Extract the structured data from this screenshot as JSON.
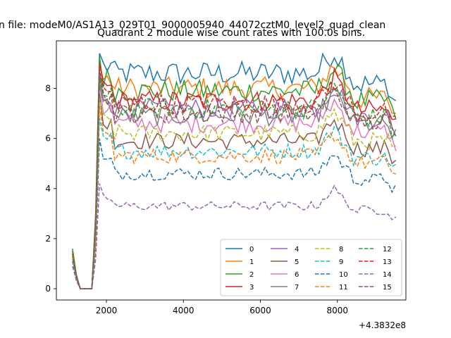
{
  "chart_data": {
    "type": "line",
    "title": "Quadrant 2 module wise count rates with 100.0s bins.",
    "suptitle": "n file: modeM0/AS1A13_029T01_9000005940_44072cztM0_level2_quad_clean",
    "x_offset_label": "+4.3832e8",
    "xlabel": "",
    "ylabel": "",
    "xlim": [
      700,
      9780
    ],
    "ylim": [
      -0.45,
      9.9
    ],
    "xticks": [
      2000,
      4000,
      6000,
      8000
    ],
    "xtick_labels": [
      "2000",
      "4000",
      "6000",
      "8000"
    ],
    "yticks": [
      0,
      2,
      4,
      6,
      8
    ],
    "ytick_labels": [
      "0",
      "2",
      "4",
      "6",
      "8"
    ],
    "grid": false,
    "legend": {
      "placement": "lower-right",
      "columns": 4
    },
    "series": [
      {
        "name": "0",
        "color": "#1f77b4",
        "dash": "solid",
        "start": 1.5,
        "level": 8.6,
        "peak": 9.4,
        "hump": 0.9
      },
      {
        "name": "1",
        "color": "#ff7f0e",
        "dash": "solid",
        "start": 1.4,
        "level": 8.0,
        "peak": 9.0,
        "hump": 0.9
      },
      {
        "name": "2",
        "color": "#2ca02c",
        "dash": "solid",
        "start": 1.6,
        "level": 7.9,
        "peak": 9.3,
        "hump": 0.9
      },
      {
        "name": "3",
        "color": "#d62728",
        "dash": "solid",
        "start": 1.5,
        "level": 7.5,
        "peak": 9.0,
        "hump": 0.9
      },
      {
        "name": "4",
        "color": "#9467bd",
        "dash": "solid",
        "start": 1.4,
        "level": 7.2,
        "peak": 8.7,
        "hump": 0.9
      },
      {
        "name": "5",
        "color": "#8c564b",
        "dash": "solid",
        "start": 1.3,
        "level": 5.9,
        "peak": 7.8,
        "hump": 0.9
      },
      {
        "name": "6",
        "color": "#e377c2",
        "dash": "solid",
        "start": 1.4,
        "level": 6.6,
        "peak": 8.3,
        "hump": 0.9
      },
      {
        "name": "7",
        "color": "#7f7f7f",
        "dash": "solid",
        "start": 1.4,
        "level": 6.9,
        "peak": 8.2,
        "hump": 0.9
      },
      {
        "name": "8",
        "color": "#bcbd22",
        "dash": "dashed",
        "start": 1.3,
        "level": 6.2,
        "peak": 7.6,
        "hump": 0.9
      },
      {
        "name": "9",
        "color": "#17becf",
        "dash": "dashed",
        "start": 1.2,
        "level": 5.5,
        "peak": 6.8,
        "hump": 0.9
      },
      {
        "name": "10",
        "color": "#1f77b4",
        "dash": "dashed",
        "start": 1.1,
        "level": 4.6,
        "peak": 6.0,
        "hump": 0.8
      },
      {
        "name": "11",
        "color": "#ff7f0e",
        "dash": "dashed",
        "start": 1.3,
        "level": 5.3,
        "peak": 7.3,
        "hump": 0.9
      },
      {
        "name": "12",
        "color": "#2ca02c",
        "dash": "dashed",
        "start": 1.5,
        "level": 7.2,
        "peak": 8.4,
        "hump": 0.9
      },
      {
        "name": "13",
        "color": "#d62728",
        "dash": "dashed",
        "start": 1.4,
        "level": 7.4,
        "peak": 8.6,
        "hump": 0.9
      },
      {
        "name": "14",
        "color": "#9467bd",
        "dash": "dashed",
        "start": 0.9,
        "level": 3.3,
        "peak": 4.2,
        "hump": 0.7
      },
      {
        "name": "15",
        "color": "#8c564b",
        "dash": "dashed",
        "start": 1.4,
        "level": 7.0,
        "peak": 8.8,
        "hump": 0.9
      }
    ]
  }
}
